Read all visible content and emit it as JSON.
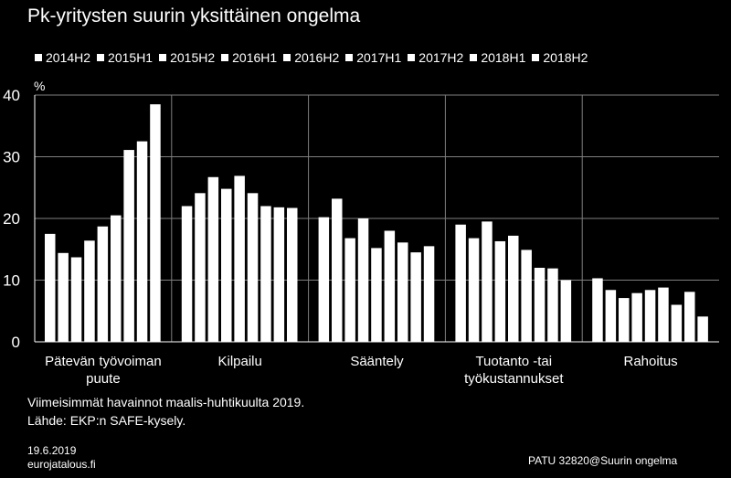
{
  "title": "Pk-yritysten suurin yksittäinen ongelma",
  "unit_label": "%",
  "colors": {
    "background": "#000000",
    "bars": "#ffffff",
    "axis": "#ffffff",
    "grid": "#7f7f7f"
  },
  "chart_data": {
    "type": "bar",
    "title": "Pk-yritysten suurin yksittäinen ongelma",
    "ylabel": "%",
    "ylim": [
      0,
      40
    ],
    "yticks": [
      0,
      10,
      20,
      30,
      40
    ],
    "grid": true,
    "legend_position": "top",
    "categories": [
      "Pätevän työvoiman puute",
      "Kilpailu",
      "Sääntely",
      "Tuotanto -tai työkustannukset",
      "Rahoitus"
    ],
    "category_label_lines": [
      [
        "Pätevän työvoiman",
        "puute"
      ],
      [
        "Kilpailu"
      ],
      [
        "Sääntely"
      ],
      [
        "Tuotanto -tai",
        "työkustannukset"
      ],
      [
        "Rahoitus"
      ]
    ],
    "series": [
      {
        "name": "2014H2",
        "values": [
          17.5,
          22.0,
          20.2,
          19.0,
          10.3
        ]
      },
      {
        "name": "2015H1",
        "values": [
          14.4,
          24.1,
          23.2,
          16.8,
          8.4
        ]
      },
      {
        "name": "2015H2",
        "values": [
          13.7,
          26.7,
          16.8,
          19.5,
          7.1
        ]
      },
      {
        "name": "2016H1",
        "values": [
          16.4,
          24.8,
          20.0,
          16.3,
          7.9
        ]
      },
      {
        "name": "2016H2",
        "values": [
          18.7,
          26.9,
          15.2,
          17.2,
          8.4
        ]
      },
      {
        "name": "2017H1",
        "values": [
          20.5,
          24.1,
          18.0,
          14.9,
          8.8
        ]
      },
      {
        "name": "2017H2",
        "values": [
          31.1,
          22.0,
          16.1,
          12.0,
          6.0
        ]
      },
      {
        "name": "2018H1",
        "values": [
          32.5,
          21.8,
          14.5,
          11.9,
          8.1
        ]
      },
      {
        "name": "2018H2",
        "values": [
          38.5,
          21.7,
          15.5,
          10.0,
          4.1
        ]
      }
    ]
  },
  "footnote": "Viimeisimmät havainnot maalis-huhtikuulta 2019.",
  "source": "Lähde: EKP:n SAFE-kysely.",
  "date": "19.6.2019",
  "site": "eurojatalous.fi",
  "code": "PATU 32820@Suurin  ongelma"
}
